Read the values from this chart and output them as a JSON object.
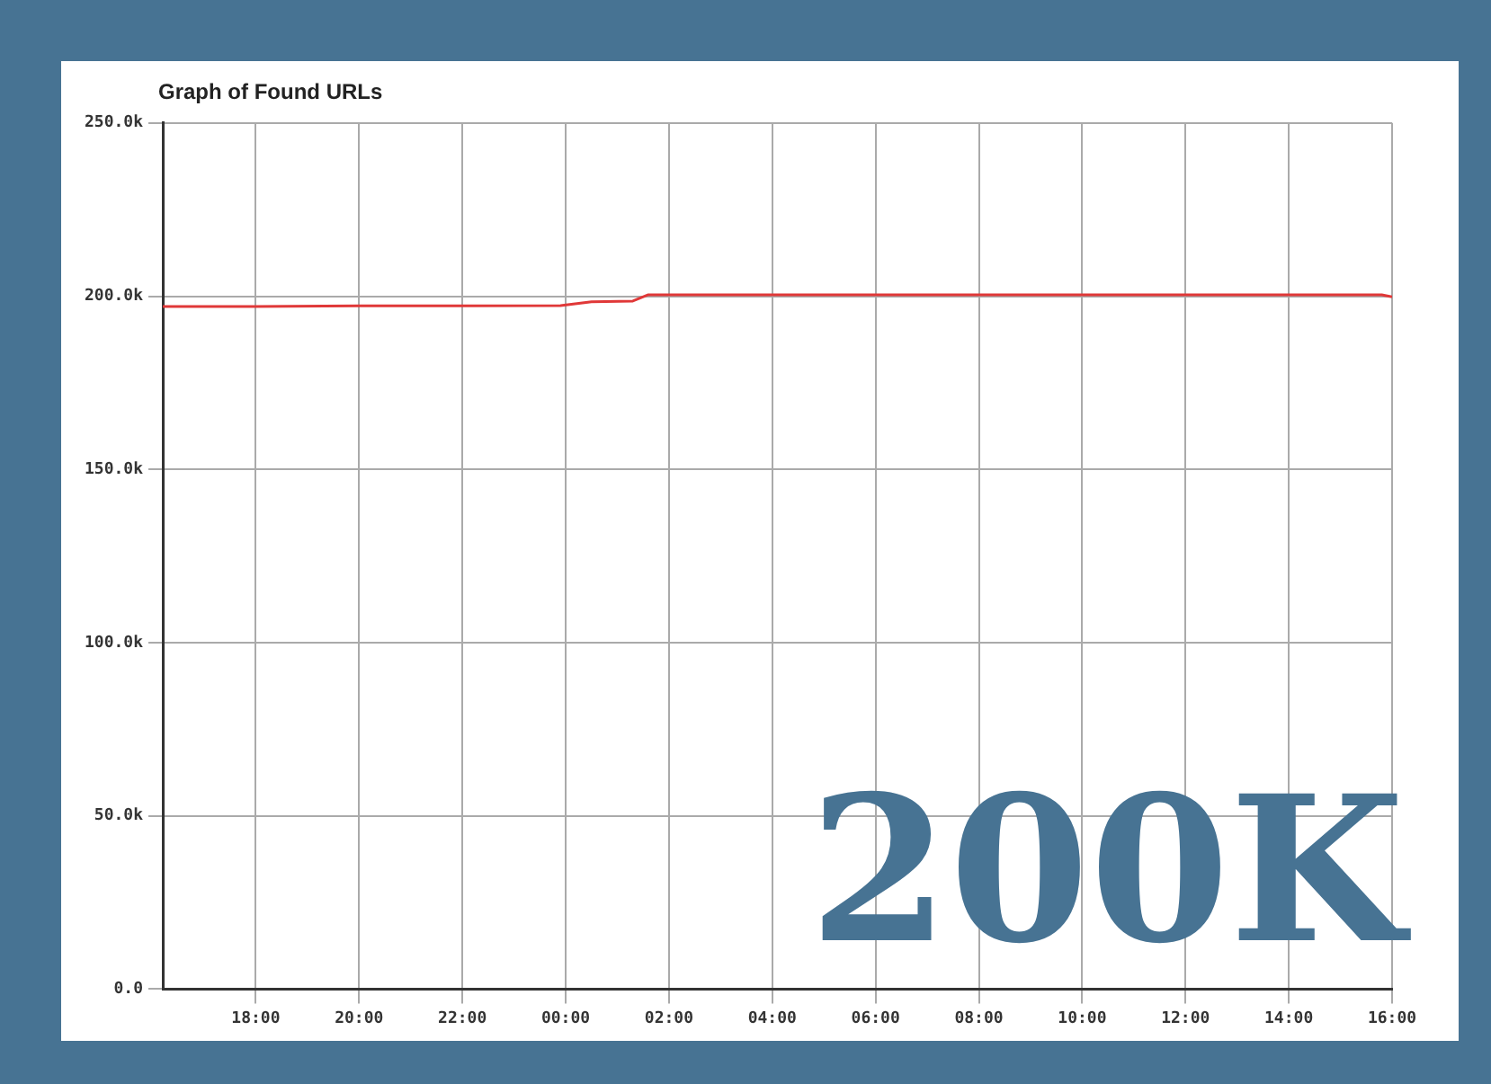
{
  "chart_data": {
    "type": "line",
    "title": "Graph of Found URLs",
    "x": [
      "--01-01T16:12",
      "--01-01T18:00",
      "--01-01T20:00",
      "--01-01T22:00",
      "--01-01T23:54",
      "--01-02T00:30",
      "--01-02T01:18",
      "--01-02T01:36",
      "--01-02T04:00",
      "--01-02T08:00",
      "--01-02T12:00",
      "--01-02T15:48",
      "--01-02T16:00"
    ],
    "series": [
      {
        "color": "#e03838",
        "values": [
          197000,
          197000,
          197200,
          197200,
          197300,
          198400,
          198600,
          200400,
          200400,
          200400,
          200400,
          200400,
          199800
        ]
      }
    ],
    "xlim": [
      "--01-01T16:12",
      "--01-02T16:00"
    ],
    "xticks": [
      {
        "value": "--01-01T18:00",
        "label": "18:00"
      },
      {
        "value": "--01-01T20:00",
        "label": "20:00"
      },
      {
        "value": "--01-01T22:00",
        "label": "22:00"
      },
      {
        "value": "--01-02T00:00",
        "label": "00:00"
      },
      {
        "value": "--01-02T02:00",
        "label": "02:00"
      },
      {
        "value": "--01-02T04:00",
        "label": "04:00"
      },
      {
        "value": "--01-02T06:00",
        "label": "06:00"
      },
      {
        "value": "--01-02T08:00",
        "label": "08:00"
      },
      {
        "value": "--01-02T10:00",
        "label": "10:00"
      },
      {
        "value": "--01-02T12:00",
        "label": "12:00"
      },
      {
        "value": "--01-02T14:00",
        "label": "14:00"
      },
      {
        "value": "--01-02T16:00",
        "label": "16:00"
      }
    ],
    "ylim": [
      0,
      250000
    ],
    "yticks": [
      {
        "value": 0,
        "label": "0.0"
      },
      {
        "value": 50000,
        "label": "50.0k"
      },
      {
        "value": 100000,
        "label": "100.0k"
      },
      {
        "value": 150000,
        "label": "150.0k"
      },
      {
        "value": 200000,
        "label": "200.0k"
      },
      {
        "value": 250000,
        "label": "250.0k"
      }
    ],
    "grid": true,
    "legend": false,
    "marker": "none",
    "line_style": "solid",
    "annotations": [
      "200K"
    ]
  }
}
